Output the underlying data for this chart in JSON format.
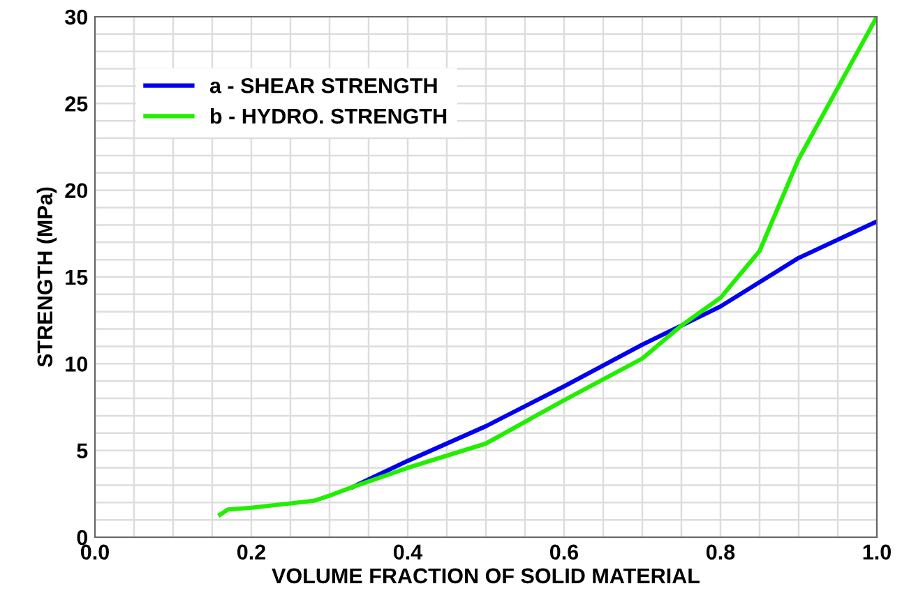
{
  "chart_data": {
    "type": "line",
    "xlabel": "VOLUME FRACTION OF SOLID MATERIAL",
    "ylabel": "STRENGTH (MPa)",
    "xlim": [
      0,
      1
    ],
    "ylim": [
      0,
      30
    ],
    "xticks": [
      {
        "value": 0,
        "label": "0.0"
      },
      0.2,
      0.4,
      0.6,
      0.8,
      {
        "value": 1,
        "label": "1.0"
      }
    ],
    "yticks": [
      0,
      5,
      10,
      15,
      20,
      25,
      30
    ],
    "grid": true,
    "legend": "top left",
    "marker": "none",
    "line_style": "solid",
    "series": [
      {
        "name": "a - SHEAR STRENGTH",
        "color": "#0000ee",
        "x": [
          0.33,
          0.4,
          0.5,
          0.6,
          0.7,
          0.8,
          0.9,
          1.0
        ],
        "values": [
          2.9,
          4.4,
          6.4,
          8.7,
          11.1,
          13.3,
          16.1,
          18.2
        ]
      },
      {
        "name": "b - HYDRO. STRENGTH",
        "color": "#22ee00",
        "x": [
          0.16,
          0.17,
          0.2,
          0.28,
          0.3,
          0.33,
          0.4,
          0.5,
          0.6,
          0.7,
          0.75,
          0.8,
          0.85,
          0.9,
          1.0
        ],
        "values": [
          1.3,
          1.6,
          1.7,
          2.1,
          2.4,
          2.9,
          4.0,
          5.4,
          7.9,
          10.3,
          12.2,
          13.8,
          16.5,
          21.8,
          30
        ]
      }
    ]
  }
}
